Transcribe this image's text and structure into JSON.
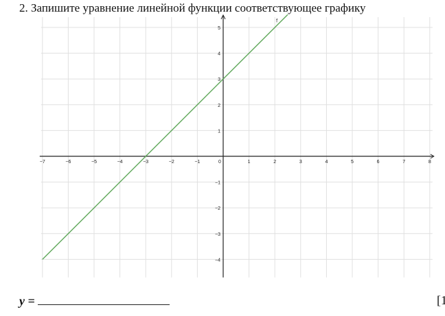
{
  "question": {
    "title": "2. Запишите уравнение линейной функции соответствующее графику"
  },
  "answer": {
    "label": "y =",
    "mark": "[1"
  },
  "chart_data": {
    "type": "line",
    "title": "",
    "xlabel": "",
    "ylabel": "",
    "xlim": [
      -7,
      8
    ],
    "ylim": [
      -4.7,
      5.4
    ],
    "xticks": [
      -7,
      -6,
      -5,
      -4,
      -3,
      -2,
      -1,
      0,
      1,
      2,
      3,
      4,
      5,
      6,
      7,
      8
    ],
    "yticks": [
      -4,
      -3,
      -2,
      -1,
      1,
      2,
      3,
      4,
      5
    ],
    "grid": true,
    "series": [
      {
        "name": "f",
        "color": "#5fa85a",
        "x": [
          -7,
          2.5
        ],
        "y": [
          -4,
          5.5
        ]
      }
    ],
    "axis_color": "#222222",
    "grid_color": "#e0e0e0"
  }
}
